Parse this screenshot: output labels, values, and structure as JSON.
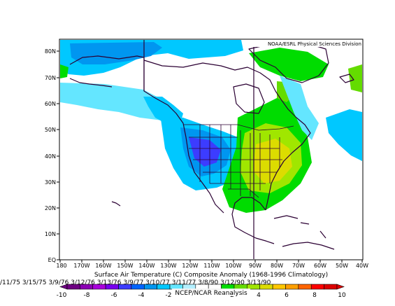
{
  "map": {
    "credit": "NOAA/ESRL Physical Sciences Division",
    "lat_labels": [
      "80N",
      "70N",
      "60N",
      "50N",
      "40N",
      "30N",
      "20N",
      "10N",
      "EQ"
    ],
    "lon_labels": [
      "180",
      "170W",
      "160W",
      "150W",
      "140W",
      "130W",
      "120W",
      "110W",
      "100W",
      "90W",
      "80W",
      "70W",
      "60W",
      "50W",
      "40W"
    ]
  },
  "caption": {
    "dates": "/11/75 3/15/75 3/9/76 3/12/76 3/13/76 3/9/77 3/10/77 3/11/77 3/8/90 3/12/90 3/13/90",
    "title": "Surface Air Temperature (C) Composite Anomaly (1968-1996 Climatology)",
    "source": "NCEP/NCAR Reanalysis"
  },
  "colorbar": {
    "labels": [
      "-10",
      "-8",
      "-6",
      "-4",
      "-2",
      "2",
      "4",
      "6",
      "8",
      "10"
    ],
    "colors": [
      "#6e0082",
      "#8c00b4",
      "#aa00dc",
      "#7800f0",
      "#3c3cff",
      "#0064ff",
      "#0096f0",
      "#00c8ff",
      "#64e6ff",
      "#b4f0ff",
      "#ffffff",
      "#ffffff",
      "#00dc00",
      "#64dc00",
      "#a0e600",
      "#dcdc00",
      "#ffc800",
      "#ffa000",
      "#ff6400",
      "#ff0000",
      "#dc0000"
    ]
  }
}
